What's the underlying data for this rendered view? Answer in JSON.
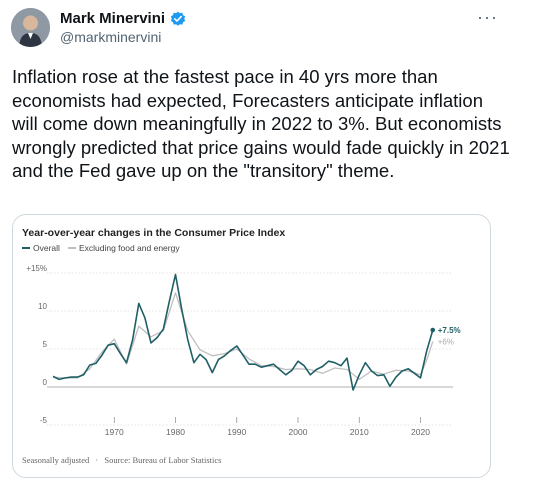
{
  "author": {
    "display_name": "Mark Minervini",
    "handle": "@markminervini",
    "verified_icon": "verified-badge-icon"
  },
  "more_options": "···",
  "tweet_text": "Inflation rose at the fastest pace in 40 yrs more than economists had expected, Forecasters anticipate inflation will come down meaningfully in 2022 to 3%. But economists wrongly predicted that price gains would fade quickly in 2021 and the Fed gave up on the \"transitory\" theme.",
  "chart_data": {
    "type": "line",
    "title": "Year-over-year changes in the Consumer Price Index",
    "xlabel": "",
    "ylabel": "",
    "xlim": [
      1960,
      2024
    ],
    "ylim": [
      -5,
      15
    ],
    "x_ticks": [
      "1970",
      "1980",
      "1990",
      "2000",
      "2010",
      "2020"
    ],
    "y_ticks": [
      "+15%",
      "10",
      "5",
      "0",
      "-5"
    ],
    "grid": "dotted horizontal",
    "legend": "top-left",
    "series": [
      {
        "name": "Overall",
        "color": "#1f5f66",
        "end_label": "+7.5%",
        "points": [
          [
            1960,
            1.4
          ],
          [
            1961,
            1.0
          ],
          [
            1962,
            1.2
          ],
          [
            1963,
            1.3
          ],
          [
            1964,
            1.3
          ],
          [
            1965,
            1.6
          ],
          [
            1966,
            2.9
          ],
          [
            1967,
            3.1
          ],
          [
            1968,
            4.2
          ],
          [
            1969,
            5.5
          ],
          [
            1970,
            5.7
          ],
          [
            1971,
            4.4
          ],
          [
            1972,
            3.2
          ],
          [
            1973,
            6.2
          ],
          [
            1974,
            11.0
          ],
          [
            1975,
            9.1
          ],
          [
            1976,
            5.8
          ],
          [
            1977,
            6.5
          ],
          [
            1978,
            7.6
          ],
          [
            1979,
            11.3
          ],
          [
            1980,
            14.8
          ],
          [
            1981,
            10.3
          ],
          [
            1982,
            6.2
          ],
          [
            1983,
            3.2
          ],
          [
            1984,
            4.3
          ],
          [
            1985,
            3.6
          ],
          [
            1986,
            1.9
          ],
          [
            1987,
            3.6
          ],
          [
            1988,
            4.1
          ],
          [
            1989,
            4.8
          ],
          [
            1990,
            5.4
          ],
          [
            1991,
            4.2
          ],
          [
            1992,
            3.0
          ],
          [
            1993,
            3.0
          ],
          [
            1994,
            2.6
          ],
          [
            1995,
            2.8
          ],
          [
            1996,
            3.0
          ],
          [
            1997,
            2.3
          ],
          [
            1998,
            1.6
          ],
          [
            1999,
            2.2
          ],
          [
            2000,
            3.4
          ],
          [
            2001,
            2.8
          ],
          [
            2002,
            1.6
          ],
          [
            2003,
            2.3
          ],
          [
            2004,
            2.7
          ],
          [
            2005,
            3.4
          ],
          [
            2006,
            3.2
          ],
          [
            2007,
            2.8
          ],
          [
            2008,
            3.8
          ],
          [
            2009,
            -0.4
          ],
          [
            2010,
            1.6
          ],
          [
            2011,
            3.2
          ],
          [
            2012,
            2.1
          ],
          [
            2013,
            1.5
          ],
          [
            2014,
            1.6
          ],
          [
            2015,
            0.1
          ],
          [
            2016,
            1.3
          ],
          [
            2017,
            2.1
          ],
          [
            2018,
            2.4
          ],
          [
            2019,
            1.8
          ],
          [
            2020,
            1.2
          ],
          [
            2021,
            4.7
          ],
          [
            2022,
            7.5
          ]
        ]
      },
      {
        "name": "Excluding food and energy",
        "color": "#bfbfbf",
        "end_label": "+6%",
        "points": [
          [
            1960,
            1.3
          ],
          [
            1962,
            1.2
          ],
          [
            1964,
            1.2
          ],
          [
            1966,
            2.4
          ],
          [
            1968,
            4.6
          ],
          [
            1970,
            6.3
          ],
          [
            1972,
            3.0
          ],
          [
            1974,
            8.0
          ],
          [
            1976,
            6.6
          ],
          [
            1978,
            7.4
          ],
          [
            1980,
            12.4
          ],
          [
            1982,
            7.4
          ],
          [
            1984,
            4.9
          ],
          [
            1986,
            4.1
          ],
          [
            1988,
            4.4
          ],
          [
            1990,
            5.0
          ],
          [
            1992,
            3.7
          ],
          [
            1994,
            2.8
          ],
          [
            1996,
            2.7
          ],
          [
            1998,
            2.3
          ],
          [
            2000,
            2.4
          ],
          [
            2002,
            2.3
          ],
          [
            2004,
            1.8
          ],
          [
            2006,
            2.5
          ],
          [
            2008,
            2.3
          ],
          [
            2010,
            1.0
          ],
          [
            2012,
            2.1
          ],
          [
            2014,
            1.7
          ],
          [
            2016,
            2.2
          ],
          [
            2018,
            2.1
          ],
          [
            2020,
            1.6
          ],
          [
            2021,
            3.5
          ],
          [
            2022,
            6.0
          ]
        ]
      }
    ]
  },
  "chart_footer": {
    "note": "Seasonally adjusted",
    "separator": "·",
    "source": "Source: Bureau of Labor Statistics"
  },
  "colors": {
    "text": "#0f1419",
    "secondary": "#536471",
    "verified": "#1d9bf0",
    "overall": "#1f5f66",
    "core": "#bfbfbf"
  }
}
